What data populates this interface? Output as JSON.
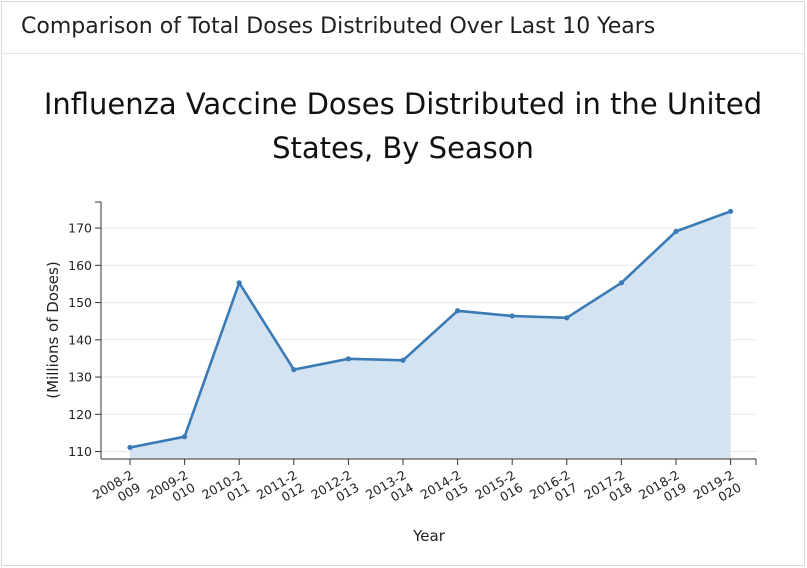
{
  "panel": {
    "heading": "Comparison of Total Doses Distributed Over Last 10 Years"
  },
  "colors": {
    "line": "#3a7ab5",
    "area": "#d4e3f1",
    "grid": "#e6e6e6",
    "axis": "#333333"
  },
  "chart_data": {
    "type": "area",
    "title_lines": [
      "Influenza Vaccine Doses Distributed in the United",
      "States, By Season"
    ],
    "xlabel": "Year",
    "ylabel": "(Millions of Doses)",
    "ylim": [
      108,
      177
    ],
    "yticks": [
      110,
      120,
      130,
      140,
      150,
      160,
      170
    ],
    "grid": true,
    "categories": [
      "2008-2009",
      "2009-2010",
      "2010-2011",
      "2011-2012",
      "2012-2013",
      "2013-2014",
      "2014-2015",
      "2015-2016",
      "2016-2017",
      "2017-2018",
      "2018-2019",
      "2019-2020"
    ],
    "tick_labels": [
      [
        "2008-2",
        "009"
      ],
      [
        "2009-2",
        "010"
      ],
      [
        "2010-2",
        "011"
      ],
      [
        "2011-2",
        "012"
      ],
      [
        "2012-2",
        "013"
      ],
      [
        "2013-2",
        "014"
      ],
      [
        "2014-2",
        "015"
      ],
      [
        "2015-2",
        "016"
      ],
      [
        "2016-2",
        "017"
      ],
      [
        "2017-2",
        "018"
      ],
      [
        "2018-2",
        "019"
      ],
      [
        "2019-2",
        "020"
      ]
    ],
    "series": [
      {
        "values": [
          111.1,
          114.0,
          155.3,
          132.0,
          134.9,
          134.5,
          147.8,
          146.4,
          145.9,
          155.3,
          169.1,
          174.5
        ]
      }
    ]
  }
}
